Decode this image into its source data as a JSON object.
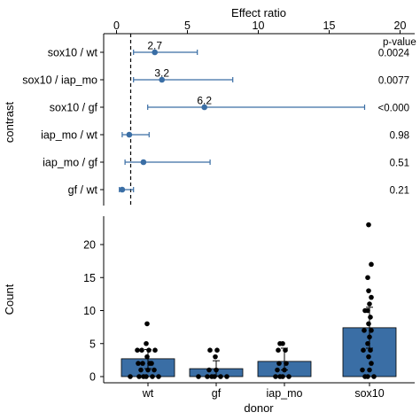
{
  "colors": {
    "accent": "#3a6ea5",
    "point": "#000000",
    "refline": "#000000",
    "background": "#ffffff"
  },
  "chart_data": [
    {
      "type": "forest",
      "xlabel": "Effect ratio",
      "ylabel": "contrast",
      "xlim": [
        0,
        20
      ],
      "xticks": [
        0,
        5,
        10,
        15,
        20
      ],
      "reference_line": 1,
      "pvalue_header": "p-value",
      "rows": [
        {
          "contrast": "sox10 / wt",
          "estimate": 2.7,
          "lower": 1.2,
          "upper": 5.7,
          "estimate_label": "2.7",
          "p_value": "0.0024"
        },
        {
          "contrast": "sox10 / iap_mo",
          "estimate": 3.2,
          "lower": 1.2,
          "upper": 8.2,
          "estimate_label": "3.2",
          "p_value": "0.0077"
        },
        {
          "contrast": "sox10 / gf",
          "estimate": 6.2,
          "lower": 2.2,
          "upper": 17.5,
          "estimate_label": "6.2",
          "p_value": "<0.000"
        },
        {
          "contrast": "iap_mo / wt",
          "estimate": 0.9,
          "lower": 0.4,
          "upper": 2.3,
          "estimate_label": "",
          "p_value": "0.98"
        },
        {
          "contrast": "iap_mo / gf",
          "estimate": 1.9,
          "lower": 0.6,
          "upper": 6.6,
          "estimate_label": "",
          "p_value": "0.51"
        },
        {
          "contrast": "gf / wt",
          "estimate": 0.4,
          "lower": 0.2,
          "upper": 1.2,
          "estimate_label": "",
          "p_value": "0.21"
        }
      ]
    },
    {
      "type": "bar",
      "xlabel": "donor",
      "ylabel": "Count",
      "categories": [
        "wt",
        "gf",
        "iap_mo",
        "sox10"
      ],
      "values": [
        2.7,
        1.2,
        2.3,
        7.4
      ],
      "error_lower": [
        1.2,
        0.1,
        1.0,
        4.3
      ],
      "error_upper": [
        4.1,
        2.4,
        4.3,
        10.5
      ],
      "ylim": [
        -0.5,
        24
      ],
      "yticks": [
        0,
        5,
        10,
        15,
        20
      ],
      "points": [
        [
          8,
          5,
          4,
          4,
          4,
          4,
          3,
          2,
          2,
          2,
          2,
          1,
          1,
          1,
          0,
          0,
          0,
          0,
          0,
          0
        ],
        [
          4,
          4,
          3,
          1,
          1,
          0,
          0,
          0,
          0,
          0,
          0
        ],
        [
          5,
          5,
          4,
          4,
          2,
          2,
          1,
          1,
          0,
          0,
          0,
          0
        ],
        [
          23,
          17,
          15,
          13,
          12,
          11,
          10,
          10,
          9,
          8,
          7,
          7,
          6,
          5,
          4,
          4,
          3,
          2,
          1,
          1,
          0,
          0,
          0
        ]
      ]
    }
  ]
}
